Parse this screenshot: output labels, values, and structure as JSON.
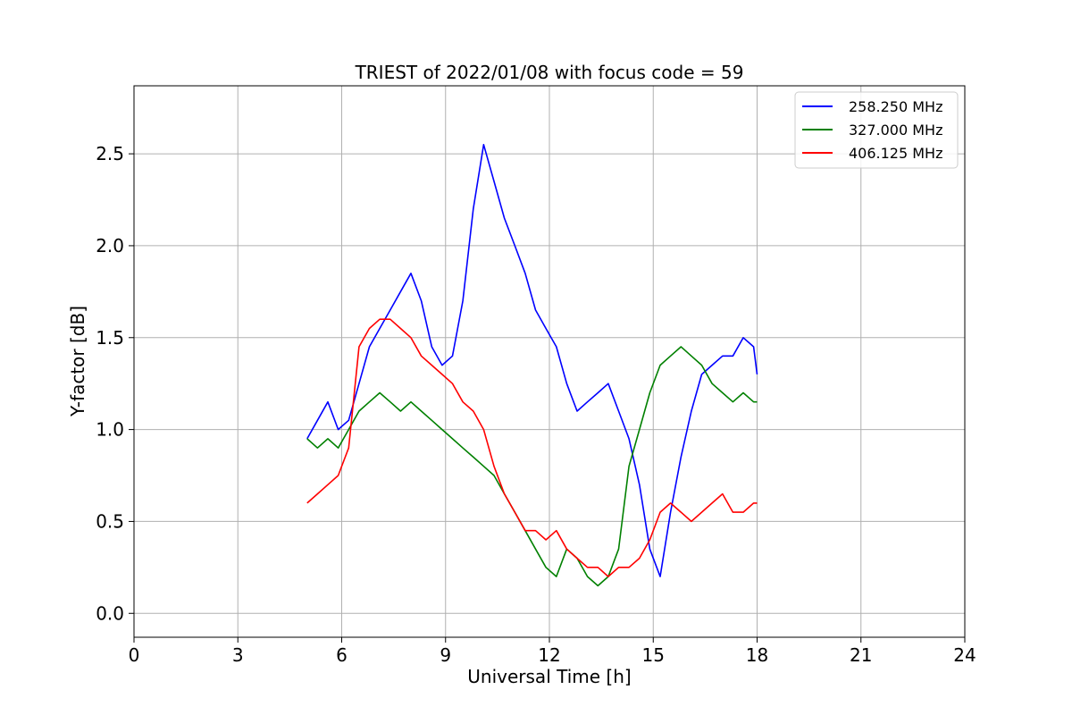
{
  "chart_data": {
    "type": "line",
    "title": "TRIEST of 2022/01/08 with focus code = 59",
    "xlabel": "Universal Time [h]",
    "ylabel": "Y-factor [dB]",
    "xlim": [
      0,
      24
    ],
    "ylim": [
      -0.13,
      2.87
    ],
    "xticks": [
      0,
      3,
      6,
      9,
      12,
      15,
      18,
      21,
      24
    ],
    "xtick_labels": [
      "0",
      "3",
      "6",
      "9",
      "12",
      "15",
      "18",
      "21",
      "24"
    ],
    "yticks": [
      0.0,
      0.5,
      1.0,
      1.5,
      2.0,
      2.5
    ],
    "ytick_labels": [
      "0.0",
      "0.5",
      "1.0",
      "1.5",
      "2.0",
      "2.5"
    ],
    "grid": true,
    "legend_position": "top-right",
    "series": [
      {
        "name": "258.250 MHz",
        "color": "#0000ff",
        "x": [
          5.0,
          5.3,
          5.6,
          5.9,
          6.2,
          6.5,
          6.8,
          7.1,
          7.4,
          7.7,
          8.0,
          8.3,
          8.6,
          8.9,
          9.2,
          9.5,
          9.8,
          10.1,
          10.4,
          10.7,
          11.0,
          11.3,
          11.6,
          11.9,
          12.2,
          12.5,
          12.8,
          13.1,
          13.4,
          13.7,
          14.0,
          14.3,
          14.6,
          14.9,
          15.2,
          15.5,
          15.8,
          16.1,
          16.4,
          16.7,
          17.0,
          17.3,
          17.6,
          17.9,
          18.0
        ],
        "y": [
          0.95,
          1.05,
          1.15,
          1.0,
          1.05,
          1.25,
          1.45,
          1.55,
          1.65,
          1.75,
          1.85,
          1.7,
          1.45,
          1.35,
          1.4,
          1.7,
          2.2,
          2.55,
          2.35,
          2.15,
          2.0,
          1.85,
          1.65,
          1.55,
          1.45,
          1.25,
          1.1,
          1.15,
          1.2,
          1.25,
          1.1,
          0.95,
          0.7,
          0.35,
          0.2,
          0.55,
          0.85,
          1.1,
          1.3,
          1.35,
          1.4,
          1.4,
          1.5,
          1.45,
          1.3
        ]
      },
      {
        "name": "327.000 MHz",
        "color": "#008000",
        "x": [
          5.0,
          5.3,
          5.6,
          5.9,
          6.2,
          6.5,
          6.8,
          7.1,
          7.4,
          7.7,
          8.0,
          8.3,
          8.6,
          8.9,
          9.2,
          9.5,
          9.8,
          10.1,
          10.4,
          10.7,
          11.0,
          11.3,
          11.6,
          11.9,
          12.2,
          12.5,
          12.8,
          13.1,
          13.4,
          13.7,
          14.0,
          14.3,
          14.6,
          14.9,
          15.2,
          15.5,
          15.8,
          16.1,
          16.4,
          16.7,
          17.0,
          17.3,
          17.6,
          17.9,
          18.0
        ],
        "y": [
          0.95,
          0.9,
          0.95,
          0.9,
          1.0,
          1.1,
          1.15,
          1.2,
          1.15,
          1.1,
          1.15,
          1.1,
          1.05,
          1.0,
          0.95,
          0.9,
          0.85,
          0.8,
          0.75,
          0.65,
          0.55,
          0.45,
          0.35,
          0.25,
          0.2,
          0.35,
          0.3,
          0.2,
          0.15,
          0.2,
          0.35,
          0.8,
          1.0,
          1.2,
          1.35,
          1.4,
          1.45,
          1.4,
          1.35,
          1.25,
          1.2,
          1.15,
          1.2,
          1.15,
          1.15
        ]
      },
      {
        "name": "406.125 MHz",
        "color": "#ff0000",
        "x": [
          5.0,
          5.3,
          5.6,
          5.9,
          6.2,
          6.5,
          6.8,
          7.1,
          7.4,
          7.7,
          8.0,
          8.3,
          8.6,
          8.9,
          9.2,
          9.5,
          9.8,
          10.1,
          10.4,
          10.7,
          11.0,
          11.3,
          11.6,
          11.9,
          12.2,
          12.5,
          12.8,
          13.1,
          13.4,
          13.7,
          14.0,
          14.3,
          14.6,
          14.9,
          15.2,
          15.5,
          15.8,
          16.1,
          16.4,
          16.7,
          17.0,
          17.3,
          17.6,
          17.9,
          18.0
        ],
        "y": [
          0.6,
          0.65,
          0.7,
          0.75,
          0.9,
          1.45,
          1.55,
          1.6,
          1.6,
          1.55,
          1.5,
          1.4,
          1.35,
          1.3,
          1.25,
          1.15,
          1.1,
          1.0,
          0.8,
          0.65,
          0.55,
          0.45,
          0.45,
          0.4,
          0.45,
          0.35,
          0.3,
          0.25,
          0.25,
          0.2,
          0.25,
          0.25,
          0.3,
          0.4,
          0.55,
          0.6,
          0.55,
          0.5,
          0.55,
          0.6,
          0.65,
          0.55,
          0.55,
          0.6,
          0.6
        ]
      }
    ]
  }
}
